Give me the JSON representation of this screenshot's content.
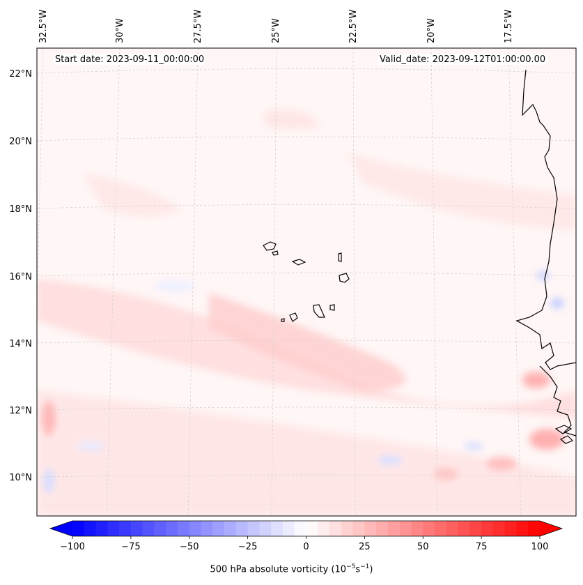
{
  "map": {
    "start_date_text": "Start date: 2023-09-11_00:00:00",
    "valid_date_text": "Valid_date: 2023-09-12T01:00:00.00",
    "extent": {
      "lon_min": -32.5,
      "lon_max": -15.0,
      "lat_min": 9.0,
      "lat_max": 22.7
    },
    "lon_tick_labels": [
      "32.5°W",
      "30°W",
      "27.5°W",
      "25°W",
      "22.5°W",
      "20°W",
      "17.5°W"
    ],
    "lat_tick_labels": [
      "22°N",
      "20°N",
      "18°N",
      "16°N",
      "14°N",
      "12°N",
      "10°N"
    ],
    "gridlines": true,
    "coastline_color": "#000000",
    "field": "500 hPa absolute vorticity"
  },
  "colorbar": {
    "label_text": "500 hPa absolute vorticity",
    "label_units_text": "(10",
    "label_exp1": "−5",
    "label_mid": "s",
    "label_exp2": "−1",
    "label_close": ")",
    "tick_labels": [
      "−100",
      "−75",
      "−50",
      "−25",
      "0",
      "25",
      "50",
      "75",
      "100"
    ],
    "vmin": -100,
    "vmax": 100,
    "extend": "both",
    "cmap": "bwr",
    "low_color": "#0000ff",
    "mid_color": "#ffffff",
    "high_color": "#ff0000"
  }
}
